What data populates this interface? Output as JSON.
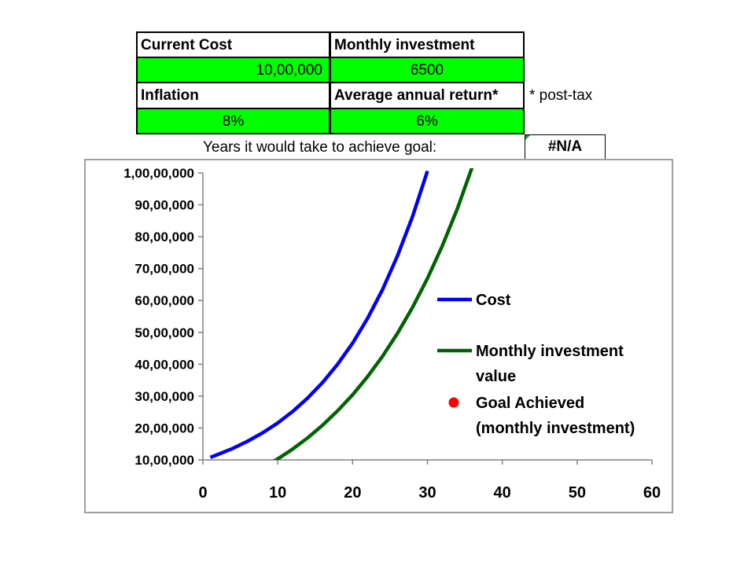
{
  "inputs": {
    "current_cost_label": "Current Cost",
    "current_cost_value": "10,00,000",
    "monthly_investment_label": "Monthly investment",
    "monthly_investment_value": "6500",
    "inflation_label": "Inflation",
    "inflation_value": "8%",
    "annual_return_label": "Average annual return*",
    "annual_return_value": "6%",
    "footnote": "* post-tax",
    "years_label": "Years it would take to achieve goal:",
    "years_value": "#N/A"
  },
  "colors": {
    "input_fill": "#00ff00",
    "cost_line": "#0000ff",
    "investment_line": "#006400",
    "goal_marker": "#ff0000"
  },
  "chart_data": {
    "type": "line",
    "xlim": [
      0,
      60
    ],
    "ylim": [
      1000000,
      10000000
    ],
    "x_ticks": [
      0,
      10,
      20,
      30,
      40,
      50,
      60
    ],
    "x_tick_labels": [
      "0",
      "10",
      "20",
      "30",
      "40",
      "50",
      "60"
    ],
    "y_ticks": [
      1000000,
      2000000,
      3000000,
      4000000,
      5000000,
      6000000,
      7000000,
      8000000,
      9000000,
      10000000
    ],
    "y_tick_labels": [
      "10,00,000",
      "20,00,000",
      "30,00,000",
      "40,00,000",
      "50,00,000",
      "60,00,000",
      "70,00,000",
      "80,00,000",
      "90,00,000",
      "1,00,00,000"
    ],
    "grid": false,
    "legend_position": "right",
    "series": [
      {
        "name": "Cost",
        "color": "#0000ff",
        "x": [
          1,
          2,
          4,
          6,
          8,
          10,
          12,
          14,
          16,
          18,
          20,
          22,
          24,
          26,
          28,
          30
        ],
        "y": [
          1080000,
          1170000,
          1360000,
          1590000,
          1850000,
          2160000,
          2520000,
          2940000,
          3430000,
          4000000,
          4660000,
          5440000,
          6340000,
          7400000,
          8630000,
          10060000
        ]
      },
      {
        "name": "Monthly investment value",
        "color": "#006400",
        "x": [
          9,
          10,
          12,
          14,
          16,
          18,
          20,
          22,
          24,
          26,
          28,
          30,
          32,
          34,
          36
        ],
        "y": [
          900000,
          1030000,
          1340000,
          1690000,
          2090000,
          2540000,
          3040000,
          3610000,
          4250000,
          4970000,
          5780000,
          6690000,
          7720000,
          8880000,
          10200000
        ]
      },
      {
        "name": "Goal Achieved (monthly investment)",
        "color": "#ff0000",
        "marker": "circle",
        "x": [],
        "y": []
      }
    ],
    "legend": [
      {
        "line1": "Cost",
        "line2": ""
      },
      {
        "line1": "Monthly investment",
        "line2": "value"
      },
      {
        "line1": "Goal Achieved",
        "line2": "(monthly investment)"
      }
    ]
  }
}
